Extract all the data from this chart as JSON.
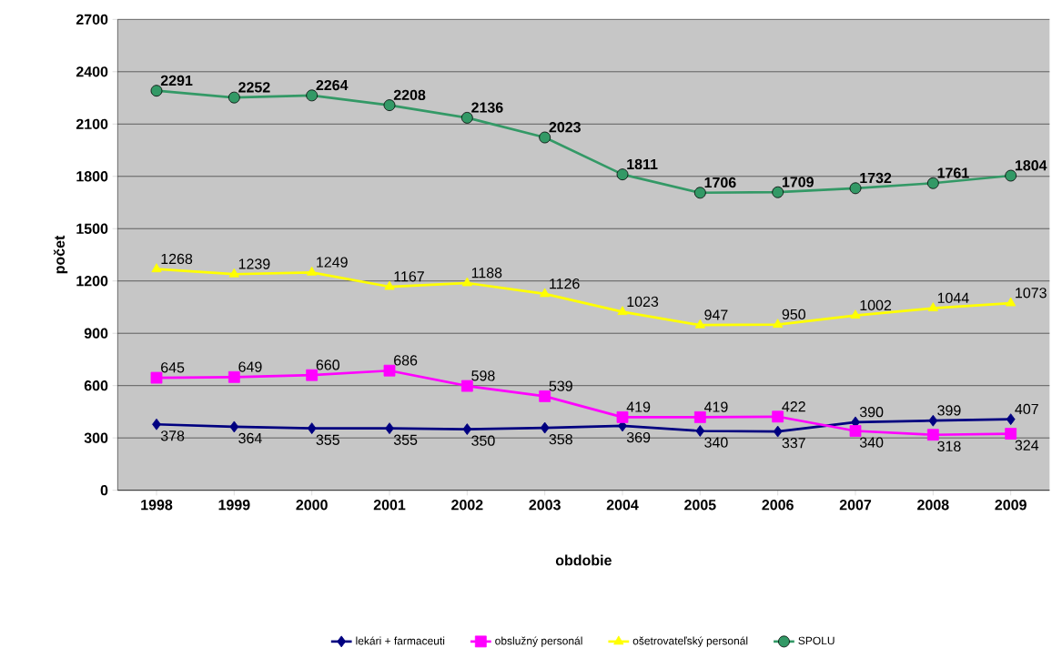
{
  "chart_data": {
    "type": "line",
    "xlabel": "obdobie",
    "ylabel": "počet",
    "categories": [
      "1998",
      "1999",
      "2000",
      "2001",
      "2002",
      "2003",
      "2004",
      "2005",
      "2006",
      "2007",
      "2008",
      "2009"
    ],
    "series": [
      {
        "name": "lekári + farmaceuti",
        "color": "#000080",
        "marker": "diamond",
        "values": [
          378,
          364,
          355,
          355,
          350,
          358,
          369,
          340,
          337,
          390,
          399,
          407
        ]
      },
      {
        "name": "obslužný personál",
        "color": "#ff00ff",
        "marker": "square",
        "values": [
          645,
          649,
          660,
          686,
          598,
          539,
          419,
          419,
          422,
          340,
          318,
          324
        ]
      },
      {
        "name": "ošetrovateľský personál",
        "color": "#ffff00",
        "marker": "triangle",
        "values": [
          1268,
          1239,
          1249,
          1167,
          1188,
          1126,
          1023,
          947,
          950,
          1002,
          1044,
          1073
        ]
      },
      {
        "name": "SPOLU",
        "color": "#339966",
        "marker": "circle",
        "values": [
          2291,
          2252,
          2264,
          2208,
          2136,
          2023,
          1811,
          1706,
          1709,
          1732,
          1761,
          1804
        ]
      }
    ],
    "ylim": [
      0,
      2700
    ],
    "yticks": [
      0,
      300,
      600,
      900,
      1200,
      1500,
      1800,
      2100,
      2400,
      2700
    ],
    "grid": "y",
    "legend": "bottom",
    "data_labels": true
  }
}
